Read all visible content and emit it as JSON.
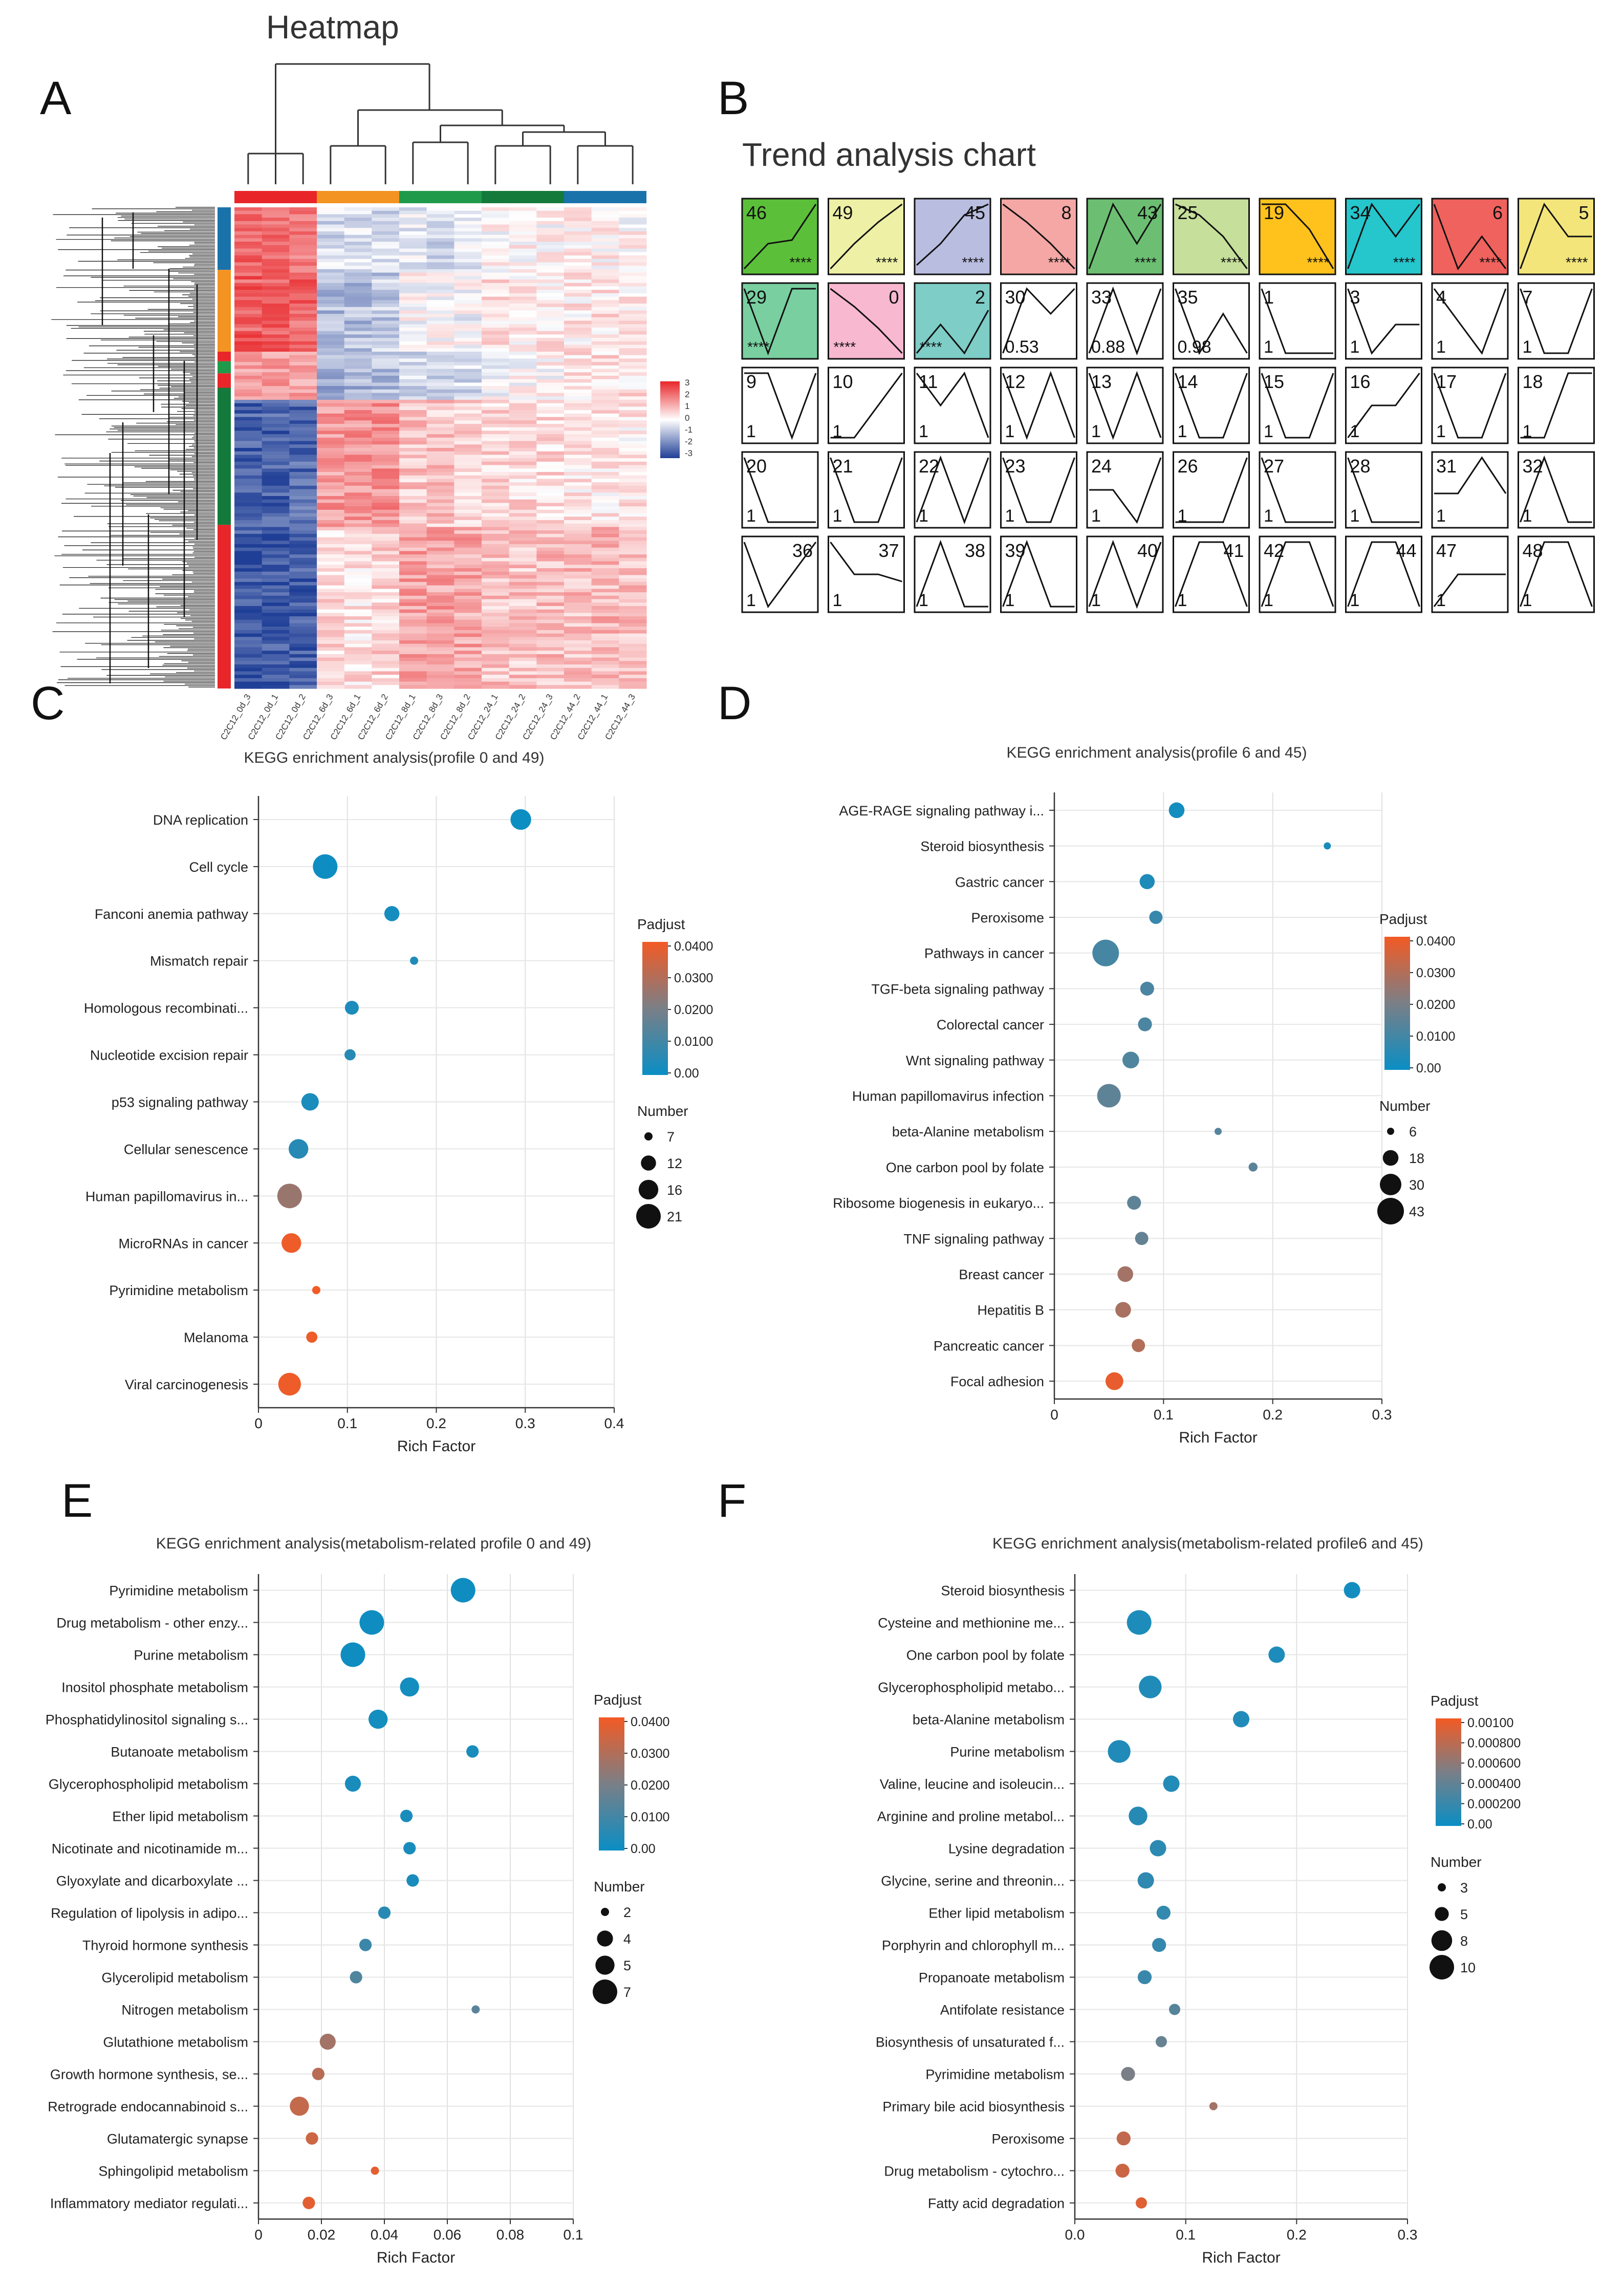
{
  "panels": {
    "A": "A",
    "B": "B",
    "C": "C",
    "D": "D",
    "E": "E",
    "F": "F"
  },
  "heatmap": {
    "title": "Heatmap",
    "samples": [
      "C2C12_0d_1",
      "C2C12_0d_2",
      "C2C12_0d_3",
      "C2C12_6d_1",
      "C2C12_6d_2",
      "C2C12_6d_3",
      "C2C12_8d_1",
      "C2C12_8d_2",
      "C2C12_8d_3",
      "C2C12_24_1",
      "C2C12_24_2",
      "C2C12_24_3",
      "C2C12_44_1",
      "C2C12_44_2",
      "C2C12_44_3"
    ],
    "sample_labels": [
      "C2C12_0d_3",
      "C2C12_0d_1",
      "C2C12_0d_2",
      "C2C12_6d_3",
      "C2C12_6d_1",
      "C2C12_6d_2",
      "C2C12_8d_1",
      "C2C12_8d_3",
      "C2C12_8d_2",
      "C2C12_24_1",
      "C2C12_24_2",
      "C2C12_24_3",
      "C2C12_44_2",
      "C2C12_44_1",
      "C2C12_44_3"
    ],
    "group_colors": [
      "#e8262a",
      "#f39322",
      "#1f9a4a",
      "#137a3b",
      "#1a72ab"
    ],
    "row_cluster_colors": [
      "#1a72ab",
      "#f39322",
      "#e8262a",
      "#1f9a4a",
      "#e8262a",
      "#137a3b",
      "#e8262a"
    ],
    "legend_ticks": [
      "3",
      "2",
      "1",
      "0",
      "-1",
      "-2",
      "-3"
    ],
    "colors": {
      "high": "#e8262a",
      "mid": "#ffffff",
      "low": "#1f3e96"
    }
  },
  "trend": {
    "title": "Trend analysis chart",
    "profiles": [
      {
        "id": "46",
        "p": "****",
        "color": "#5cbf3a"
      },
      {
        "id": "49",
        "p": "****",
        "color": "#eef0a6"
      },
      {
        "id": "45",
        "p": "****",
        "color": "#b9bde0"
      },
      {
        "id": "8",
        "p": "****",
        "color": "#f4a7a4"
      },
      {
        "id": "43",
        "p": "****",
        "color": "#6cbf72"
      },
      {
        "id": "25",
        "p": "****",
        "color": "#c6df9b"
      },
      {
        "id": "19",
        "p": "****",
        "color": "#ffc21c"
      },
      {
        "id": "34",
        "p": "****",
        "color": "#25c6cc"
      },
      {
        "id": "6",
        "p": "****",
        "color": "#f0625d"
      },
      {
        "id": "5",
        "p": "****",
        "color": "#f3e57a"
      },
      {
        "id": "29",
        "p": "****",
        "color": "#79cfa0"
      },
      {
        "id": "0",
        "p": "****",
        "color": "#f7b8d0"
      },
      {
        "id": "2",
        "p": "****",
        "color": "#7ecdc7"
      },
      {
        "id": "30",
        "p": "0.53",
        "color": "#ffffff"
      },
      {
        "id": "33",
        "p": "0.88",
        "color": "#ffffff"
      },
      {
        "id": "35",
        "p": "0.98",
        "color": "#ffffff"
      },
      {
        "id": "1",
        "p": "1",
        "color": "#ffffff"
      },
      {
        "id": "3",
        "p": "1",
        "color": "#ffffff"
      },
      {
        "id": "4",
        "p": "1",
        "color": "#ffffff"
      },
      {
        "id": "7",
        "p": "1",
        "color": "#ffffff"
      },
      {
        "id": "9",
        "p": "1",
        "color": "#ffffff"
      },
      {
        "id": "10",
        "p": "1",
        "color": "#ffffff"
      },
      {
        "id": "11",
        "p": "1",
        "color": "#ffffff"
      },
      {
        "id": "12",
        "p": "1",
        "color": "#ffffff"
      },
      {
        "id": "13",
        "p": "1",
        "color": "#ffffff"
      },
      {
        "id": "14",
        "p": "1",
        "color": "#ffffff"
      },
      {
        "id": "15",
        "p": "1",
        "color": "#ffffff"
      },
      {
        "id": "16",
        "p": "1",
        "color": "#ffffff"
      },
      {
        "id": "17",
        "p": "1",
        "color": "#ffffff"
      },
      {
        "id": "18",
        "p": "1",
        "color": "#ffffff"
      },
      {
        "id": "20",
        "p": "1",
        "color": "#ffffff"
      },
      {
        "id": "21",
        "p": "1",
        "color": "#ffffff"
      },
      {
        "id": "22",
        "p": "1",
        "color": "#ffffff"
      },
      {
        "id": "23",
        "p": "1",
        "color": "#ffffff"
      },
      {
        "id": "24",
        "p": "1",
        "color": "#ffffff"
      },
      {
        "id": "26",
        "p": "1",
        "color": "#ffffff"
      },
      {
        "id": "27",
        "p": "1",
        "color": "#ffffff"
      },
      {
        "id": "28",
        "p": "1",
        "color": "#ffffff"
      },
      {
        "id": "31",
        "p": "1",
        "color": "#ffffff"
      },
      {
        "id": "32",
        "p": "1",
        "color": "#ffffff"
      },
      {
        "id": "36",
        "p": "1",
        "color": "#ffffff"
      },
      {
        "id": "37",
        "p": "1",
        "color": "#ffffff"
      },
      {
        "id": "38",
        "p": "1",
        "color": "#ffffff"
      },
      {
        "id": "39",
        "p": "1",
        "color": "#ffffff"
      },
      {
        "id": "40",
        "p": "1",
        "color": "#ffffff"
      },
      {
        "id": "41",
        "p": "1",
        "color": "#ffffff"
      },
      {
        "id": "42",
        "p": "1",
        "color": "#ffffff"
      },
      {
        "id": "44",
        "p": "1",
        "color": "#ffffff"
      },
      {
        "id": "47",
        "p": "1",
        "color": "#ffffff"
      },
      {
        "id": "48",
        "p": "1",
        "color": "#ffffff"
      }
    ]
  },
  "chart_data": [
    {
      "panel": "C",
      "type": "scatter",
      "title": "KEGG enrichment analysis(profile 0 and 49)",
      "xlabel": "Rich Factor",
      "xlim": [
        0,
        0.4
      ],
      "xticks": [
        "0",
        "0.1",
        "0.2",
        "0.3",
        "0.4"
      ],
      "color_title": "Padjust",
      "color_range": [
        0,
        0.04
      ],
      "color_ticks": [
        "0.0400",
        "0.0300",
        "0.0200",
        "0.0100",
        "0.00"
      ],
      "size_title": "Number",
      "size_range": [
        7,
        21
      ],
      "size_ticks": [
        "7",
        "12",
        "16",
        "21"
      ],
      "terms": [
        "DNA replication",
        "Cell cycle",
        "Fanconi anemia pathway",
        "Mismatch repair",
        "Homologous recombinati...",
        "Nucleotide excision repair",
        "p53 signaling pathway",
        "Cellular senescence",
        "Human papillomavirus in...",
        "MicroRNAs in cancer",
        "Pyrimidine metabolism",
        "Melanoma",
        "Viral carcinogenesis"
      ],
      "rich_factor": [
        0.295,
        0.075,
        0.15,
        0.175,
        0.105,
        0.103,
        0.058,
        0.045,
        0.035,
        0.037,
        0.065,
        0.06,
        0.035
      ],
      "count": [
        17,
        21,
        12,
        7,
        11,
        9,
        14,
        16,
        21,
        16,
        7,
        9,
        19
      ],
      "padjust": [
        0.0005,
        0.0008,
        0.002,
        0.004,
        0.003,
        0.005,
        0.003,
        0.005,
        0.025,
        0.039,
        0.04,
        0.039,
        0.039
      ]
    },
    {
      "panel": "D",
      "type": "scatter",
      "title": "KEGG enrichment analysis(profile 6 and 45)",
      "xlabel": "Rich Factor",
      "xlim": [
        0,
        0.3
      ],
      "xticks": [
        "0",
        "0.1",
        "0.2",
        "0.3"
      ],
      "color_title": "Padjust",
      "color_range": [
        0,
        0.045
      ],
      "color_ticks": [
        "0.0400",
        "0.0300",
        "0.0200",
        "0.0100",
        "0.00"
      ],
      "size_title": "Number",
      "size_range": [
        6,
        43
      ],
      "size_ticks": [
        "6",
        "18",
        "30",
        "43"
      ],
      "terms": [
        "AGE-RAGE signaling pathway i...",
        "Steroid biosynthesis",
        "Gastric cancer",
        "Peroxisome",
        "Pathways in cancer",
        "TGF-beta signaling pathway",
        "Colorectal cancer",
        "Wnt signaling pathway",
        "Human papillomavirus infection",
        "beta-Alanine metabolism",
        "One carbon pool by folate",
        "Ribosome biogenesis in eukaryo...",
        "TNF signaling pathway",
        "Breast cancer",
        "Hepatitis B",
        "Pancreatic cancer",
        "Focal adhesion"
      ],
      "rich_factor": [
        0.112,
        0.25,
        0.085,
        0.093,
        0.047,
        0.085,
        0.083,
        0.07,
        0.05,
        0.15,
        0.182,
        0.073,
        0.08,
        0.065,
        0.063,
        0.077,
        0.055
      ],
      "count": [
        18,
        6,
        17,
        14,
        43,
        15,
        15,
        20,
        35,
        6,
        8,
        15,
        14,
        18,
        18,
        14,
        22
      ],
      "padjust": [
        0.002,
        0.003,
        0.004,
        0.009,
        0.012,
        0.013,
        0.013,
        0.014,
        0.017,
        0.015,
        0.016,
        0.017,
        0.018,
        0.03,
        0.031,
        0.033,
        0.043
      ]
    },
    {
      "panel": "E",
      "type": "scatter",
      "title": "KEGG enrichment analysis(metabolism-related profile 0 and 49)",
      "xlabel": "Rich Factor",
      "xlim": [
        0,
        0.1
      ],
      "xticks": [
        "0",
        "0.02",
        "0.04",
        "0.06",
        "0.08",
        "0.1"
      ],
      "color_title": "Padjust",
      "color_range": [
        0,
        0.045
      ],
      "color_ticks": [
        "0.0400",
        "0.0300",
        "0.0200",
        "0.0100",
        "0.00"
      ],
      "size_title": "Number",
      "size_range": [
        2,
        7
      ],
      "size_ticks": [
        "2",
        "4",
        "5",
        "7"
      ],
      "terms": [
        "Pyrimidine metabolism",
        "Drug metabolism - other enzy...",
        "Purine metabolism",
        "Inositol phosphate metabolism",
        "Phosphatidylinositol signaling s...",
        "Butanoate metabolism",
        "Glycerophospholipid metabolism",
        "Ether lipid metabolism",
        "Nicotinate and nicotinamide m...",
        "Glyoxylate and dicarboxylate ...",
        "Regulation of lipolysis in adipo...",
        "Thyroid hormone synthesis",
        "Glycerolipid metabolism",
        "Nitrogen metabolism",
        "Glutathione metabolism",
        "Growth hormone synthesis, se...",
        "Retrograde endocannabinoid s...",
        "Glutamatergic synapse",
        "Sphingolipid metabolism",
        "Inflammatory mediator regulati..."
      ],
      "rich_factor": [
        0.065,
        0.036,
        0.03,
        0.048,
        0.038,
        0.068,
        0.03,
        0.047,
        0.048,
        0.049,
        0.04,
        0.034,
        0.031,
        0.069,
        0.022,
        0.019,
        0.013,
        0.017,
        0.037,
        0.016
      ],
      "count": [
        7,
        7,
        7,
        5,
        5,
        3,
        4,
        3,
        3,
        3,
        3,
        3,
        3,
        2,
        4,
        3,
        5,
        3,
        2,
        3
      ],
      "padjust": [
        0.001,
        0.001,
        0.001,
        0.002,
        0.002,
        0.003,
        0.003,
        0.003,
        0.003,
        0.003,
        0.006,
        0.01,
        0.014,
        0.016,
        0.03,
        0.034,
        0.036,
        0.038,
        0.042,
        0.042
      ]
    },
    {
      "panel": "F",
      "type": "scatter",
      "title": "KEGG enrichment analysis(metabolism-related profile6 and 45)",
      "xlabel": "Rich Factor",
      "xlim": [
        0,
        0.3
      ],
      "xticks": [
        "0.0",
        "0.1",
        "0.2",
        "0.3"
      ],
      "color_title": "Padjust",
      "color_range": [
        0,
        0.0012
      ],
      "color_ticks": [
        "0.00100",
        "0.000800",
        "0.000600",
        "0.000400",
        "0.000200",
        "0.00"
      ],
      "size_title": "Number",
      "size_range": [
        3,
        10
      ],
      "size_ticks": [
        "3",
        "5",
        "8",
        "10"
      ],
      "terms": [
        "Steroid biosynthesis",
        "Cysteine and methionine me...",
        "One carbon pool by folate",
        "Glycerophospholipid metabo...",
        "beta-Alanine metabolism",
        "Purine metabolism",
        "Valine, leucine and isoleucin...",
        "Arginine and proline metabol...",
        "Lysine degradation",
        "Glycine, serine and threonin...",
        "Ether lipid metabolism",
        "Porphyrin and chlorophyll m...",
        "Propanoate metabolism",
        "Antifolate resistance",
        "Biosynthesis of unsaturated f...",
        "Pyrimidine metabolism",
        "Primary bile acid biosynthesis",
        "Peroxisome",
        "Drug metabolism - cytochro...",
        "Fatty acid degradation"
      ],
      "rich_factor": [
        0.25,
        0.058,
        0.182,
        0.068,
        0.15,
        0.04,
        0.087,
        0.057,
        0.075,
        0.064,
        0.08,
        0.076,
        0.063,
        0.09,
        0.078,
        0.048,
        0.125,
        0.044,
        0.043,
        0.06
      ],
      "count": [
        6,
        10,
        6,
        9,
        6,
        9,
        6,
        7,
        6,
        6,
        5,
        5,
        5,
        4,
        4,
        5,
        3,
        5,
        5,
        4
      ],
      "padjust": [
        5e-05,
        0.0001,
        0.0001,
        0.00012,
        0.00012,
        0.00012,
        0.00013,
        0.00015,
        0.00018,
        0.0002,
        0.00022,
        0.00023,
        0.00025,
        0.0004,
        0.0005,
        0.0006,
        0.0008,
        0.00095,
        0.001,
        0.0011
      ]
    }
  ]
}
